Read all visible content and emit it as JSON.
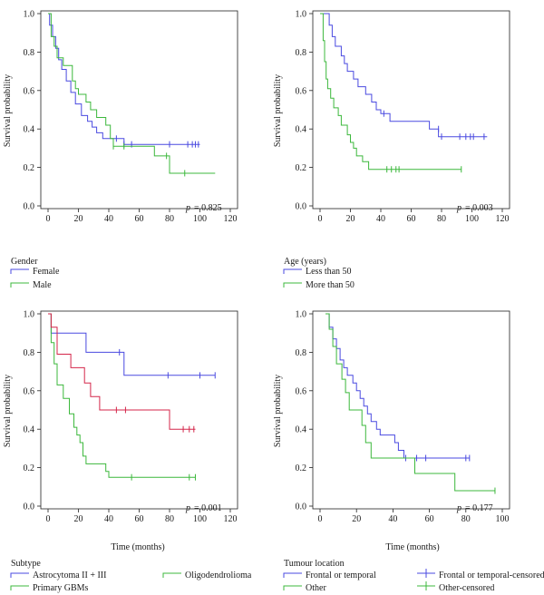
{
  "chart_data": [
    {
      "id": "gender",
      "type": "line",
      "subtype": "kaplan-meier",
      "ylabel": "Survival probability",
      "xlabel": "",
      "xlim": [
        0,
        120
      ],
      "ylim": [
        0,
        1
      ],
      "xticks": [
        "0",
        "20",
        "40",
        "60",
        "80",
        "100",
        "120"
      ],
      "yticks": [
        "0.0",
        "0.2",
        "0.4",
        "0.6",
        "0.8",
        "1.0"
      ],
      "pvalue": "= 0.825",
      "legend_title": "Gender",
      "series": [
        {
          "name": "Female",
          "color": "#4a4ae0",
          "steps": [
            [
              0,
              1.0
            ],
            [
              1,
              0.94
            ],
            [
              3,
              0.88
            ],
            [
              5,
              0.82
            ],
            [
              7,
              0.76
            ],
            [
              9,
              0.71
            ],
            [
              12,
              0.65
            ],
            [
              15,
              0.59
            ],
            [
              18,
              0.53
            ],
            [
              22,
              0.47
            ],
            [
              26,
              0.44
            ],
            [
              29,
              0.41
            ],
            [
              32,
              0.38
            ],
            [
              36,
              0.35
            ],
            [
              50,
              0.32
            ],
            [
              100,
              0.32
            ]
          ],
          "censored": [
            [
              45,
              0.35
            ],
            [
              50,
              0.32
            ],
            [
              55,
              0.32
            ],
            [
              80,
              0.32
            ],
            [
              92,
              0.32
            ],
            [
              95,
              0.32
            ],
            [
              97,
              0.32
            ],
            [
              99,
              0.32
            ]
          ]
        },
        {
          "name": "Male",
          "color": "#3cb83c",
          "steps": [
            [
              0,
              1.0
            ],
            [
              2,
              0.88
            ],
            [
              4,
              0.83
            ],
            [
              6,
              0.77
            ],
            [
              10,
              0.73
            ],
            [
              16,
              0.65
            ],
            [
              18,
              0.61
            ],
            [
              20,
              0.58
            ],
            [
              25,
              0.54
            ],
            [
              28,
              0.5
            ],
            [
              32,
              0.46
            ],
            [
              38,
              0.42
            ],
            [
              41,
              0.35
            ],
            [
              43,
              0.31
            ],
            [
              70,
              0.26
            ],
            [
              80,
              0.17
            ],
            [
              110,
              0.17
            ]
          ],
          "censored": [
            [
              43,
              0.31
            ],
            [
              50,
              0.31
            ],
            [
              78,
              0.26
            ],
            [
              90,
              0.17
            ]
          ]
        }
      ]
    },
    {
      "id": "age",
      "type": "line",
      "subtype": "kaplan-meier",
      "ylabel": "Survival probability",
      "xlabel": "",
      "xlim": [
        0,
        120
      ],
      "ylim": [
        0,
        1
      ],
      "xticks": [
        "0",
        "20",
        "40",
        "60",
        "80",
        "100",
        "120"
      ],
      "yticks": [
        "0.0",
        "0.2",
        "0.4",
        "0.6",
        "0.8",
        "1.0"
      ],
      "pvalue": "= 0.003",
      "legend_title": "Age (years)",
      "series": [
        {
          "name": "Less than 50",
          "color": "#4a4ae0",
          "steps": [
            [
              0,
              1.0
            ],
            [
              6,
              0.94
            ],
            [
              8,
              0.88
            ],
            [
              10,
              0.83
            ],
            [
              14,
              0.78
            ],
            [
              16,
              0.74
            ],
            [
              18,
              0.7
            ],
            [
              22,
              0.66
            ],
            [
              25,
              0.62
            ],
            [
              30,
              0.58
            ],
            [
              34,
              0.54
            ],
            [
              37,
              0.5
            ],
            [
              40,
              0.48
            ],
            [
              46,
              0.44
            ],
            [
              72,
              0.4
            ],
            [
              78,
              0.36
            ],
            [
              110,
              0.36
            ]
          ],
          "censored": [
            [
              42,
              0.48
            ],
            [
              78,
              0.4
            ],
            [
              80,
              0.36
            ],
            [
              92,
              0.36
            ],
            [
              96,
              0.36
            ],
            [
              99,
              0.36
            ],
            [
              101,
              0.36
            ],
            [
              108,
              0.36
            ]
          ]
        },
        {
          "name": "More than 50",
          "color": "#3cb83c",
          "steps": [
            [
              0,
              1.0
            ],
            [
              2,
              0.86
            ],
            [
              3,
              0.75
            ],
            [
              4,
              0.66
            ],
            [
              5,
              0.61
            ],
            [
              7,
              0.56
            ],
            [
              9,
              0.51
            ],
            [
              12,
              0.47
            ],
            [
              14,
              0.42
            ],
            [
              18,
              0.37
            ],
            [
              20,
              0.33
            ],
            [
              22,
              0.3
            ],
            [
              24,
              0.26
            ],
            [
              28,
              0.23
            ],
            [
              32,
              0.19
            ],
            [
              93,
              0.19
            ]
          ],
          "censored": [
            [
              44,
              0.19
            ],
            [
              47,
              0.19
            ],
            [
              50,
              0.19
            ],
            [
              52,
              0.19
            ],
            [
              93,
              0.19
            ]
          ]
        }
      ]
    },
    {
      "id": "subtype",
      "type": "line",
      "subtype": "kaplan-meier",
      "ylabel": "Survival probability",
      "xlabel": "Time (months)",
      "xlim": [
        0,
        120
      ],
      "ylim": [
        0,
        1
      ],
      "xticks": [
        "0",
        "20",
        "40",
        "60",
        "80",
        "100",
        "120"
      ],
      "yticks": [
        "0.0",
        "0.2",
        "0.4",
        "0.6",
        "0.8",
        "1.0"
      ],
      "pvalue": "= 0.001",
      "legend_title": "Subtype",
      "series": [
        {
          "name": "Astrocytoma II + III",
          "color": "#4a4ae0",
          "steps": [
            [
              0,
              1.0
            ],
            [
              2,
              0.9
            ],
            [
              25,
              0.8
            ],
            [
              50,
              0.68
            ],
            [
              110,
              0.68
            ]
          ],
          "censored": [
            [
              47,
              0.8
            ],
            [
              79,
              0.68
            ],
            [
              100,
              0.68
            ],
            [
              110,
              0.68
            ]
          ]
        },
        {
          "name": "Primary GBMs",
          "color": "#3cb83c",
          "steps": [
            [
              0,
              1.0
            ],
            [
              2,
              0.85
            ],
            [
              4,
              0.74
            ],
            [
              6,
              0.63
            ],
            [
              10,
              0.56
            ],
            [
              14,
              0.48
            ],
            [
              17,
              0.41
            ],
            [
              19,
              0.37
            ],
            [
              21,
              0.33
            ],
            [
              23,
              0.26
            ],
            [
              25,
              0.22
            ],
            [
              38,
              0.18
            ],
            [
              40,
              0.15
            ],
            [
              97,
              0.15
            ]
          ],
          "censored": [
            [
              55,
              0.15
            ],
            [
              93,
              0.15
            ],
            [
              97,
              0.15
            ]
          ]
        },
        {
          "name": "Oligodendrolioma",
          "color": "#d4264a",
          "steps": [
            [
              0,
              1.0
            ],
            [
              2,
              0.93
            ],
            [
              6,
              0.79
            ],
            [
              15,
              0.72
            ],
            [
              24,
              0.64
            ],
            [
              28,
              0.57
            ],
            [
              34,
              0.5
            ],
            [
              80,
              0.4
            ],
            [
              97,
              0.4
            ]
          ],
          "censored": [
            [
              45,
              0.5
            ],
            [
              51,
              0.5
            ],
            [
              89,
              0.4
            ],
            [
              93,
              0.4
            ],
            [
              96,
              0.4
            ]
          ]
        }
      ]
    },
    {
      "id": "location",
      "type": "line",
      "subtype": "kaplan-meier",
      "ylabel": "Survival probability",
      "xlabel": "Time (months)",
      "xlim": [
        0,
        100
      ],
      "ylim": [
        0,
        1
      ],
      "xticks": [
        "0",
        "20",
        "40",
        "60",
        "80",
        "100"
      ],
      "yticks": [
        "0.0",
        "0.2",
        "0.4",
        "0.6",
        "0.8",
        "1.0"
      ],
      "pvalue": "= 0.177",
      "legend_title": "Tumour location",
      "series": [
        {
          "name": "Frontal or temporal",
          "color": "#4a4ae0",
          "steps": [
            [
              3,
              1.0
            ],
            [
              5,
              0.93
            ],
            [
              7,
              0.87
            ],
            [
              9,
              0.82
            ],
            [
              11,
              0.76
            ],
            [
              13,
              0.72
            ],
            [
              15,
              0.68
            ],
            [
              18,
              0.64
            ],
            [
              20,
              0.6
            ],
            [
              22,
              0.56
            ],
            [
              24,
              0.52
            ],
            [
              26,
              0.48
            ],
            [
              28,
              0.44
            ],
            [
              31,
              0.4
            ],
            [
              33,
              0.37
            ],
            [
              41,
              0.33
            ],
            [
              43,
              0.29
            ],
            [
              46,
              0.25
            ],
            [
              82,
              0.25
            ]
          ],
          "censored": [
            [
              47,
              0.25
            ],
            [
              53,
              0.25
            ],
            [
              58,
              0.25
            ],
            [
              80,
              0.25
            ],
            [
              82,
              0.25
            ]
          ]
        },
        {
          "name": "Other",
          "color": "#3cb83c",
          "steps": [
            [
              3,
              1.0
            ],
            [
              5,
              0.92
            ],
            [
              7,
              0.83
            ],
            [
              9,
              0.74
            ],
            [
              12,
              0.66
            ],
            [
              14,
              0.59
            ],
            [
              16,
              0.5
            ],
            [
              23,
              0.42
            ],
            [
              25,
              0.33
            ],
            [
              28,
              0.25
            ],
            [
              52,
              0.17
            ],
            [
              74,
              0.08
            ],
            [
              96,
              0.08
            ]
          ],
          "censored": [
            [
              96,
              0.08
            ]
          ]
        }
      ]
    }
  ],
  "legends": {
    "gender": {
      "title": "Gender",
      "items": [
        "Female",
        "Male"
      ]
    },
    "age": {
      "title": "Age (years)",
      "items": [
        "Less than 50",
        "More than 50"
      ]
    },
    "subtype": {
      "title": "Subtype",
      "items": [
        "Astrocytoma II + III",
        "Oligodendrolioma",
        "Primary GBMs"
      ]
    },
    "location": {
      "title": "Tumour location",
      "items": [
        "Frontal or temporal",
        "Frontal or temporal-censored",
        "Other",
        "Other-censored"
      ]
    }
  }
}
